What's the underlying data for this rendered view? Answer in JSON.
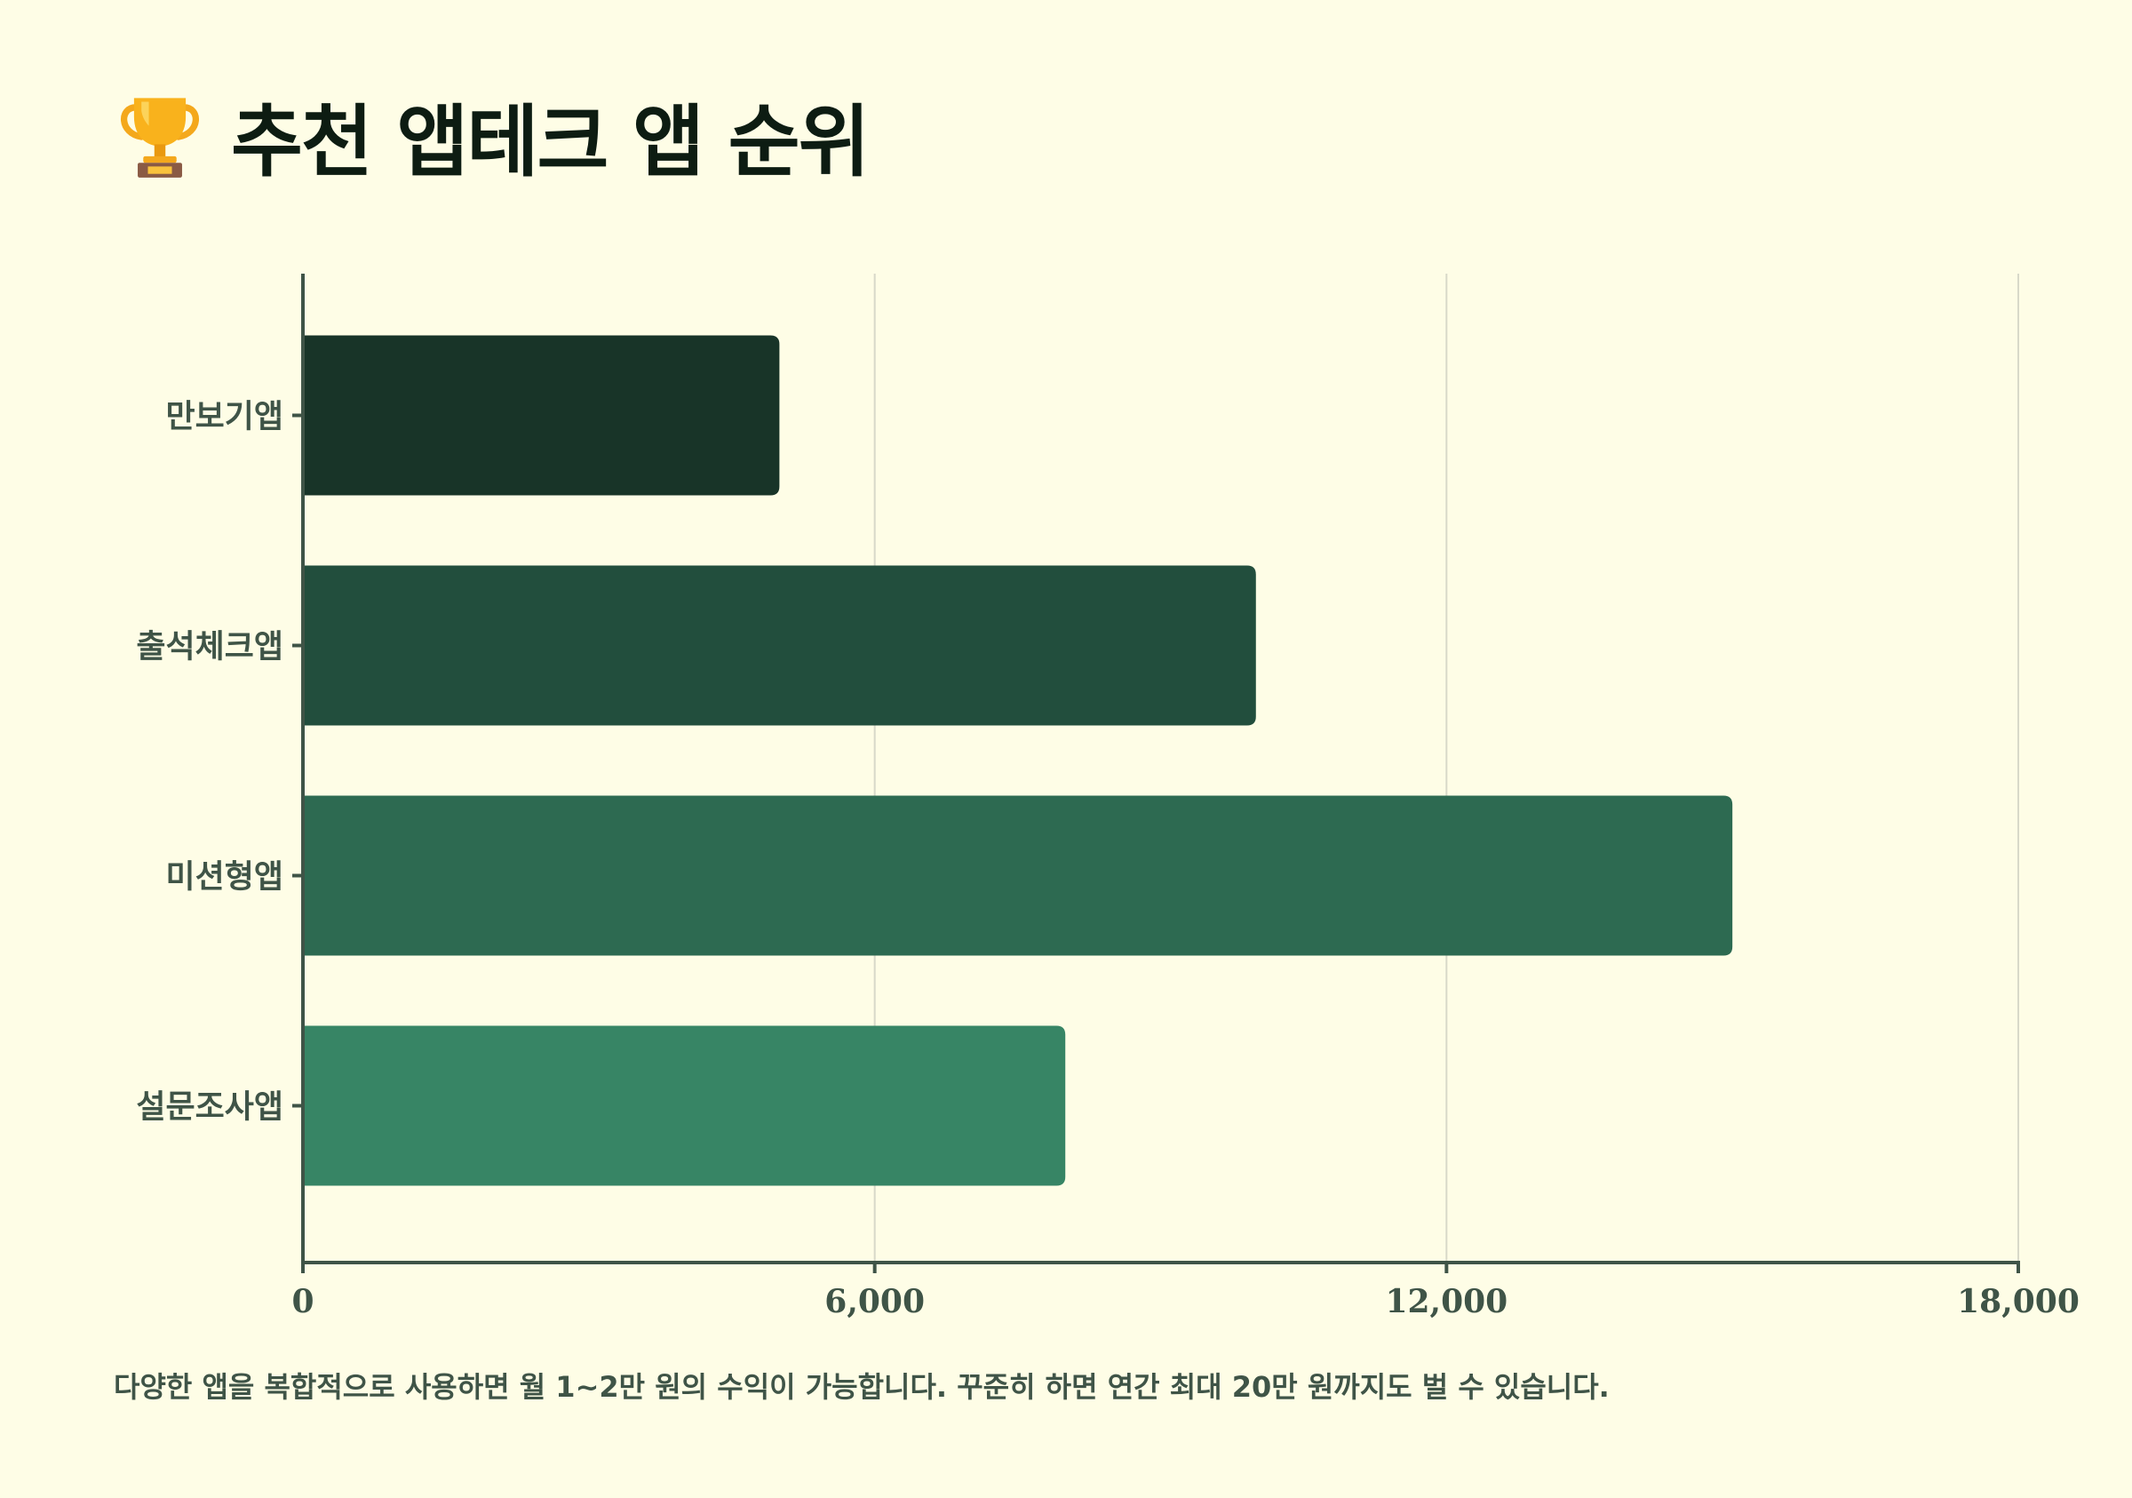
{
  "header": {
    "icon": "trophy-icon",
    "title": "추천 앱테크 앱 순위"
  },
  "chart_data": {
    "type": "bar",
    "orientation": "horizontal",
    "categories": [
      "만보기앱",
      "출석체크앱",
      "미션형앱",
      "설문조사앱"
    ],
    "values": [
      5000,
      10000,
      15000,
      8000
    ],
    "xlim": [
      0,
      18000
    ],
    "x_ticks": [
      0,
      6000,
      12000,
      18000
    ],
    "x_tick_labels": [
      "0",
      "6,000",
      "12,000",
      "18,000"
    ],
    "grid": "vertical",
    "colors": [
      "#183428",
      "#224e3d",
      "#2d6a51",
      "#378565"
    ]
  },
  "footnote": "다양한 앱을 복합적으로 사용하면 월 1~2만 원의 수익이 가능합니다. 꾸준히 하면 연간 최대 20만 원까지도 벌 수 있습니다."
}
